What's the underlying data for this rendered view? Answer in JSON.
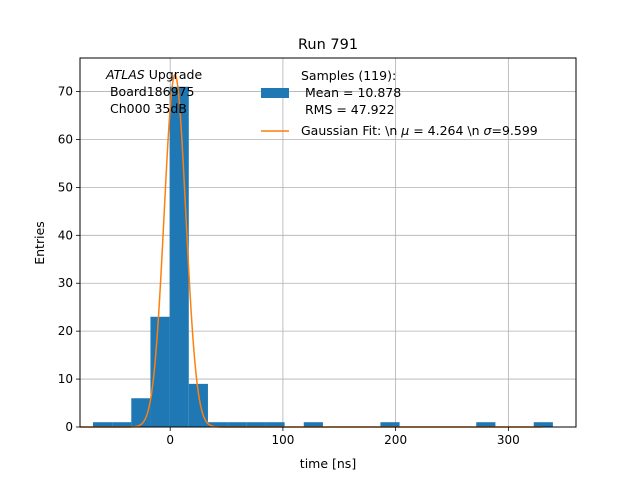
{
  "chart_data": {
    "type": "bar",
    "title": "Run 791",
    "xlabel": "time [ns]",
    "ylabel": "Entries",
    "xlim": [
      -80,
      360
    ],
    "ylim": [
      0,
      77
    ],
    "grid": true,
    "xticks": [
      0,
      100,
      200,
      300
    ],
    "yticks": [
      0,
      10,
      20,
      30,
      40,
      50,
      60,
      70
    ],
    "annotation": {
      "line1_italic": "ATLAS",
      "line1_rest": " Upgrade",
      "line2": " Board186975",
      "line3": " Ch000 35dB"
    },
    "legend": {
      "placement": "top-right",
      "histogram_label": [
        "Samples (119):",
        " Mean = 10.878",
        " RMS = 47.922"
      ],
      "fit_label_pre": "Gaussian Fit: \\n ",
      "fit_label_mu": "μ",
      "fit_label_mid": " = 4.264 \\n ",
      "fit_label_sigma": "σ",
      "fit_label_post": "=9.599"
    },
    "histogram": {
      "name": "Samples (119)",
      "color": "#1f77b4",
      "bins": [
        {
          "x0": -68.5,
          "x1": -51.5,
          "count": 1
        },
        {
          "x0": -51.5,
          "x1": -34.5,
          "count": 1
        },
        {
          "x0": -34.5,
          "x1": -17.5,
          "count": 6
        },
        {
          "x0": -17.5,
          "x1": -0.5,
          "count": 23
        },
        {
          "x0": -0.5,
          "x1": 16.5,
          "count": 71
        },
        {
          "x0": 16.5,
          "x1": 33.5,
          "count": 9
        },
        {
          "x0": 33.5,
          "x1": 50.5,
          "count": 1
        },
        {
          "x0": 50.5,
          "x1": 67.5,
          "count": 1
        },
        {
          "x0": 67.5,
          "x1": 84.5,
          "count": 1
        },
        {
          "x0": 84.5,
          "x1": 101.5,
          "count": 1
        },
        {
          "x0": 118.5,
          "x1": 135.5,
          "count": 1
        },
        {
          "x0": 186.5,
          "x1": 203.5,
          "count": 1
        },
        {
          "x0": 271.5,
          "x1": 288.5,
          "count": 1
        },
        {
          "x0": 322.5,
          "x1": 339.5,
          "count": 1
        }
      ]
    },
    "fit": {
      "name": "Gaussian Fit",
      "color": "#ff7f0e",
      "mu": 4.264,
      "sigma": 9.599,
      "amplitude": 73.5,
      "x_range": [
        -80,
        330
      ]
    }
  }
}
